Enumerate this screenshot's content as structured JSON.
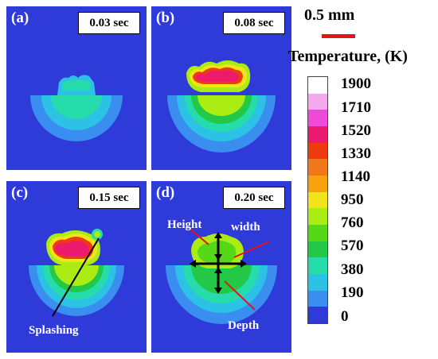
{
  "panels": [
    {
      "label": "(a)",
      "time": "0.03 sec"
    },
    {
      "label": "(b)",
      "time": "0.08 sec"
    },
    {
      "label": "(c)",
      "time": "0.15 sec"
    },
    {
      "label": "(d)",
      "time": "0.20 sec"
    }
  ],
  "annotations": {
    "splashing": "Splashing",
    "height": "Height",
    "width": "width",
    "depth": "Depth"
  },
  "scale": {
    "text": "0.5 mm",
    "color": "#e41414"
  },
  "colorbar": {
    "title": "Temperature, (K)",
    "ticks": [
      "1900",
      "1710",
      "1520",
      "1330",
      "1140",
      "950",
      "760",
      "570",
      "380",
      "190",
      "0"
    ],
    "colors": [
      "#ffffff",
      "#f4a8f0",
      "#f04ad8",
      "#ec1a6e",
      "#f03a10",
      "#f0781a",
      "#f8a20e",
      "#f0e41a",
      "#aaec14",
      "#55d818",
      "#22c846",
      "#26dcaa",
      "#2cc2e6",
      "#3a8ef0",
      "#2f3bd8"
    ]
  }
}
